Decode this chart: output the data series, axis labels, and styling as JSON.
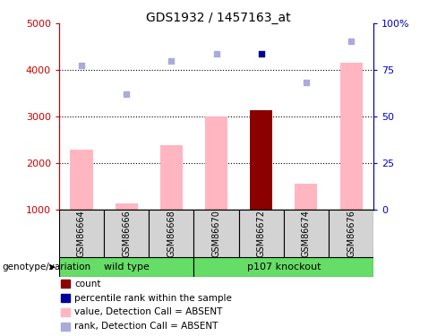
{
  "title": "GDS1932 / 1457163_at",
  "samples": [
    "GSM86664",
    "GSM86666",
    "GSM86668",
    "GSM86670",
    "GSM86672",
    "GSM86674",
    "GSM86676"
  ],
  "bar_values": [
    2300,
    1150,
    2390,
    3000,
    3150,
    1560,
    4150
  ],
  "bar_colors": [
    "#FFB6C1",
    "#FFB6C1",
    "#FFB6C1",
    "#FFB6C1",
    "#8B0000",
    "#FFB6C1",
    "#FFB6C1"
  ],
  "rank_dots": [
    4100,
    3480,
    4200,
    4360,
    4360,
    3730,
    4620
  ],
  "rank_dot_colors": [
    "#AAAADD",
    "#AAAADD",
    "#AAAADD",
    "#AAAADD",
    "#000099",
    "#AAAADD",
    "#AAAADD"
  ],
  "ylim_left": [
    1000,
    5000
  ],
  "ylim_right": [
    0,
    100
  ],
  "yticks_left": [
    1000,
    2000,
    3000,
    4000,
    5000
  ],
  "yticks_right": [
    0,
    25,
    50,
    75,
    100
  ],
  "ytick_labels_right": [
    "0",
    "25",
    "50",
    "75",
    "100%"
  ],
  "grid_values": [
    2000,
    3000,
    4000
  ],
  "left_axis_color": "#CC0000",
  "right_axis_color": "#0000CC",
  "legend_items": [
    {
      "label": "count",
      "color": "#8B0000"
    },
    {
      "label": "percentile rank within the sample",
      "color": "#000099"
    },
    {
      "label": "value, Detection Call = ABSENT",
      "color": "#FFB6C1"
    },
    {
      "label": "rank, Detection Call = ABSENT",
      "color": "#AAAADD"
    }
  ],
  "wt_samples": [
    0,
    1,
    2
  ],
  "ko_samples": [
    3,
    4,
    5,
    6
  ],
  "annotation_label": "genotype/variation"
}
